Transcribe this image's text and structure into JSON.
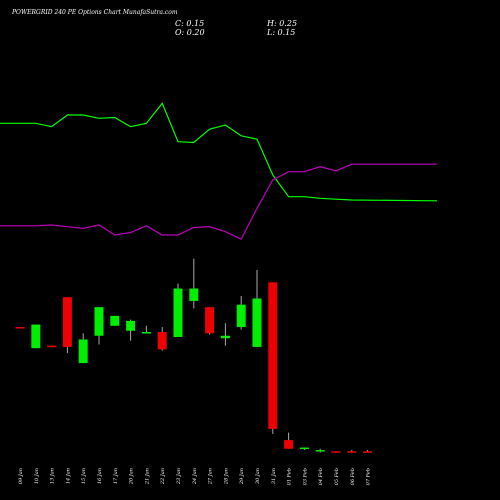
{
  "header": {
    "title": "POWERGRID 240  PE Options  Chart MunafaSutra.com",
    "close": "C: 0.15",
    "high": "H: 0.25",
    "open": "O: 0.20",
    "low": "L: 0.15"
  },
  "chart_data": {
    "type": "candlestick",
    "dates": [
      "09 Jan",
      "10 Jan",
      "13 Jan",
      "14 Jan",
      "15 Jan",
      "16 Jan",
      "17 Jan",
      "20 Jan",
      "21 Jan",
      "22 Jan",
      "23 Jan",
      "24 Jan",
      "27 Jan",
      "28 Jan",
      "29 Jan",
      "30 Jan",
      "31 Jan",
      "01 Feb",
      "03 Feb",
      "04 Feb",
      "05 Feb",
      "06 Feb",
      "07 Feb"
    ],
    "candles": [
      {
        "o": 5.2,
        "h": 5.2,
        "l": 5.15,
        "c": 5.15
      },
      {
        "o": 4.35,
        "h": 5.3,
        "l": 4.35,
        "c": 5.3
      },
      {
        "o": 4.45,
        "h": 4.45,
        "l": 4.4,
        "c": 4.4
      },
      {
        "o": 6.4,
        "h": 6.4,
        "l": 4.15,
        "c": 4.4
      },
      {
        "o": 3.75,
        "h": 4.95,
        "l": 3.75,
        "c": 4.7
      },
      {
        "o": 4.85,
        "h": 6.0,
        "l": 4.5,
        "c": 6.0
      },
      {
        "o": 5.25,
        "h": 5.65,
        "l": 5.25,
        "c": 5.65
      },
      {
        "o": 5.05,
        "h": 5.5,
        "l": 4.65,
        "c": 5.45
      },
      {
        "o": 5.0,
        "h": 5.25,
        "l": 4.95,
        "c": 5.0
      },
      {
        "o": 5.0,
        "h": 5.2,
        "l": 4.25,
        "c": 4.3
      },
      {
        "o": 4.8,
        "h": 6.95,
        "l": 4.8,
        "c": 6.75
      },
      {
        "o": 6.25,
        "h": 7.95,
        "l": 5.95,
        "c": 6.75
      },
      {
        "o": 6.0,
        "h": 6.0,
        "l": 4.9,
        "c": 4.95
      },
      {
        "o": 4.75,
        "h": 5.35,
        "l": 4.45,
        "c": 4.85
      },
      {
        "o": 5.2,
        "h": 6.45,
        "l": 5.1,
        "c": 6.1
      },
      {
        "o": 4.4,
        "h": 7.5,
        "l": 4.4,
        "c": 6.35
      },
      {
        "o": 7.0,
        "h": 7.0,
        "l": 0.9,
        "c": 1.1
      },
      {
        "o": 0.65,
        "h": 0.95,
        "l": 0.3,
        "c": 0.3
      },
      {
        "o": 0.3,
        "h": 0.35,
        "l": 0.25,
        "c": 0.35
      },
      {
        "o": 0.2,
        "h": 0.3,
        "l": 0.15,
        "c": 0.25
      },
      {
        "o": 0.2,
        "h": 0.2,
        "l": 0.15,
        "c": 0.15
      },
      {
        "o": 0.2,
        "h": 0.25,
        "l": 0.15,
        "c": 0.15
      },
      {
        "o": 0.2,
        "h": 0.25,
        "l": 0.15,
        "c": 0.15
      }
    ],
    "green_line": [
      2.54,
      2.54,
      2.5,
      2.64,
      2.64,
      2.6,
      2.61,
      2.5,
      2.54,
      2.78,
      2.32,
      2.31,
      2.47,
      2.52,
      2.39,
      2.35,
      1.92,
      1.66,
      1.66,
      1.64,
      1.63,
      1.62,
      1.61
    ],
    "magenta_line": [
      1.31,
      1.31,
      1.32,
      1.3,
      1.28,
      1.32,
      1.2,
      1.23,
      1.31,
      1.2,
      1.2,
      1.29,
      1.3,
      1.24,
      1.15,
      1.52,
      1.86,
      1.96,
      1.96,
      2.02,
      1.97,
      2.05,
      2.05
    ],
    "colors": {
      "up": "#00ee00",
      "down": "#ee0000",
      "green_line": "#00ff00",
      "magenta_line": "#bb00bb",
      "wick": "#aaaaaa",
      "background": "#000000"
    }
  }
}
